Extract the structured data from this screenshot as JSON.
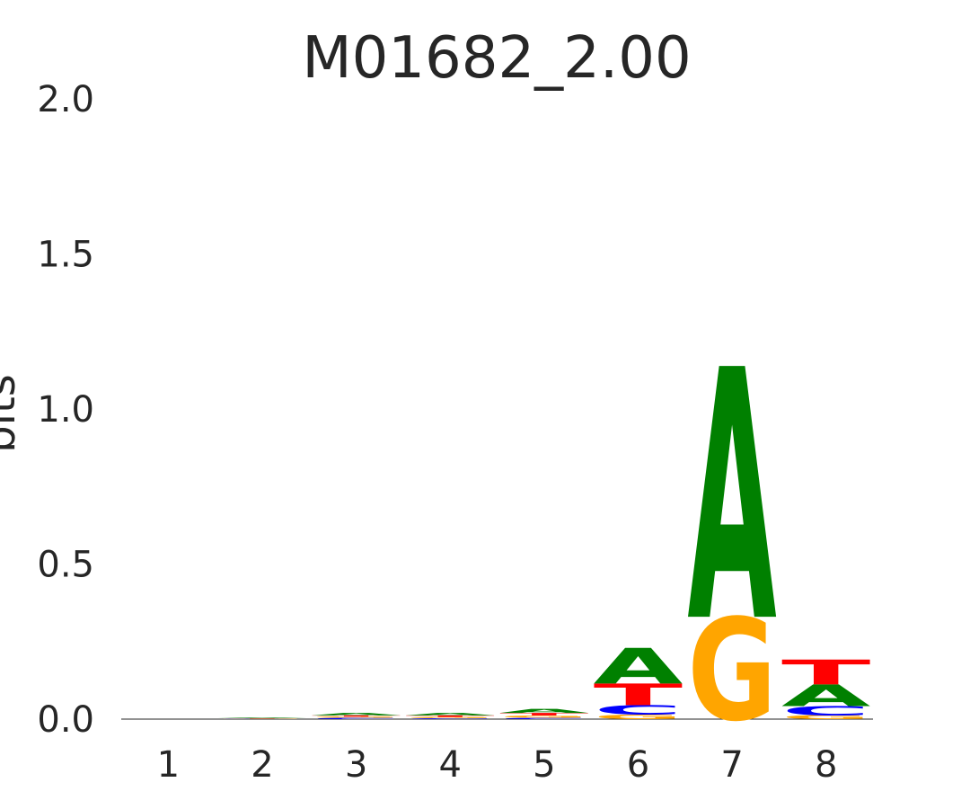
{
  "chart_data": {
    "type": "sequence-logo",
    "title": "M01682_2.00",
    "ylabel": "bits",
    "ylim": [
      0,
      2.0
    ],
    "yticks": [
      "0.0",
      "0.5",
      "1.0",
      "1.5",
      "2.0"
    ],
    "positions": [
      "1",
      "2",
      "3",
      "4",
      "5",
      "6",
      "7",
      "8"
    ],
    "colors": {
      "A": "#008000",
      "C": "#0000ff",
      "G": "#ffa500",
      "T": "#ff0000"
    },
    "stacks": [
      [],
      [
        {
          "base": "G",
          "bits": 0.001
        },
        {
          "base": "C",
          "bits": 0.001
        },
        {
          "base": "T",
          "bits": 0.001
        },
        {
          "base": "A",
          "bits": 0.002
        }
      ],
      [
        {
          "base": "C",
          "bits": 0.004
        },
        {
          "base": "G",
          "bits": 0.004
        },
        {
          "base": "T",
          "bits": 0.004
        },
        {
          "base": "A",
          "bits": 0.008
        }
      ],
      [
        {
          "base": "C",
          "bits": 0.003
        },
        {
          "base": "G",
          "bits": 0.004
        },
        {
          "base": "T",
          "bits": 0.005
        },
        {
          "base": "A",
          "bits": 0.008
        }
      ],
      [
        {
          "base": "C",
          "bits": 0.004
        },
        {
          "base": "G",
          "bits": 0.008
        },
        {
          "base": "T",
          "bits": 0.008
        },
        {
          "base": "A",
          "bits": 0.013
        }
      ],
      [
        {
          "base": "G",
          "bits": 0.015
        },
        {
          "base": "C",
          "bits": 0.03
        },
        {
          "base": "T",
          "bits": 0.07
        },
        {
          "base": "A",
          "bits": 0.115
        }
      ],
      [
        {
          "base": "G",
          "bits": 0.33
        },
        {
          "base": "A",
          "bits": 0.81
        }
      ],
      [
        {
          "base": "G",
          "bits": 0.012
        },
        {
          "base": "C",
          "bits": 0.03
        },
        {
          "base": "A",
          "bits": 0.07
        },
        {
          "base": "T",
          "bits": 0.08
        }
      ]
    ]
  }
}
